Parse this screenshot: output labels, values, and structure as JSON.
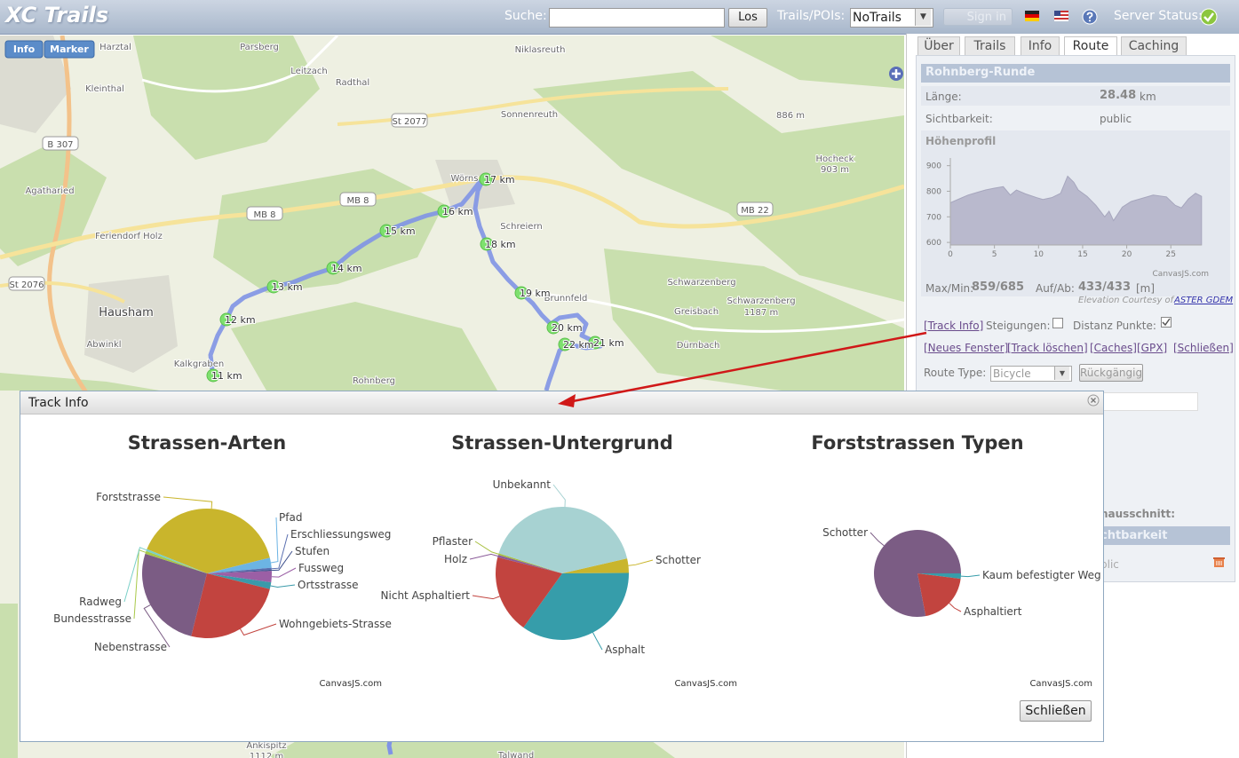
{
  "header": {
    "logo": "XC Trails",
    "search_label": "Suche:",
    "search_button": "Los",
    "trails_label": "Trails/POIs:",
    "trails_select": "NoTrails",
    "sign_in": "Sign in",
    "server_status": "Server Status:"
  },
  "map": {
    "buttons": [
      "Info",
      "Marker"
    ],
    "labels": [
      "Harztal",
      "Parsberg",
      "Niklasreuth",
      "Leitzach",
      "Radthal",
      "Kleinthal",
      "Sonnenreuth",
      "St 2077",
      "886 m",
      "B 307",
      "Hocheck",
      "903 m",
      "Agatharied",
      "MB 8",
      "MB 8",
      "MB 22",
      "Feriendorf Holz",
      "Schreiern",
      "Wörns",
      "St 2076",
      "Schwarzenberg",
      "Hausham",
      "Brunnfeld",
      "Greisbach",
      "Schwarzenberg",
      "1187 m",
      "Abwinkl",
      "Dürnbach",
      "Kalkgraben",
      "Rohnberg",
      "Ankispitz",
      "1112 m",
      "Talwand"
    ],
    "km_markers": [
      "11 km",
      "12 km",
      "13 km",
      "14 km",
      "15 km",
      "16 km",
      "17 km",
      "18 km",
      "19 km",
      "20 km",
      "21 km",
      "22 km"
    ]
  },
  "sidebar": {
    "tabs": [
      "Über",
      "Trails",
      "Info",
      "Route",
      "Caching"
    ],
    "route_name": "Rohnberg-Runde",
    "length_label": "Länge:",
    "length_value": "28.48",
    "length_unit": "km",
    "visibility_label": "Sichtbarkeit:",
    "visibility_value": "public",
    "profile_label": "Höhenprofil",
    "maxmin_label": "Max/Min:",
    "maxmin_value": "859/685",
    "updown_label": "Auf/Ab:",
    "updown_value": "433/433",
    "updown_unit": "[m]",
    "courtesy": "Elevation Courtesy of",
    "courtesy_link": "ASTER GDEM",
    "track_info": "[Track Info]",
    "slopes_label": "Steigungen:",
    "distance_label": "Distanz Punkte:",
    "links": [
      "[Neues Fenster]",
      "[Track löschen]",
      "[Caches]",
      "[GPX]",
      "[Schließen]"
    ],
    "route_type_label": "Route Type:",
    "route_type_value": "Bicycle",
    "undo": "Rückgängig",
    "hidden_fragments": [
      "hausschnitt:",
      "chtbarkeit",
      "blic"
    ]
  },
  "dialog": {
    "title": "Track Info",
    "close_button": "Schließen"
  },
  "chart_data": [
    {
      "type": "pie",
      "title": "Strassen-Arten",
      "credit": "CanvasJS.com",
      "categories": [
        "Forststrasse",
        "Pfad",
        "Erschliessungsweg",
        "Stufen",
        "Fussweg",
        "Ortsstrasse",
        "Wohngebiets-Strasse",
        "Nebenstrasse",
        "Bundesstrasse",
        "Radweg"
      ],
      "values": [
        40,
        2.5,
        0.5,
        0.3,
        2.8,
        1.7,
        25,
        26,
        0.7,
        0.5
      ],
      "colors": [
        "#c9b52c",
        "#6cb4e4",
        "#5a6fb0",
        "#3c4f8c",
        "#9b5fa5",
        "#3a9aaa",
        "#c2443f",
        "#7b5c84",
        "#a8c848",
        "#7ad0c8"
      ]
    },
    {
      "type": "pie",
      "title": "Strassen-Untergrund",
      "credit": "CanvasJS.com",
      "categories": [
        "Schotter",
        "Asphalt",
        "Nicht Asphaltiert",
        "Holz",
        "Pflaster",
        "Unbekannt"
      ],
      "values": [
        3.5,
        35,
        19,
        0.6,
        0.4,
        41.5
      ],
      "colors": [
        "#c9b52c",
        "#369daa",
        "#c2443f",
        "#8a5a98",
        "#a8c040",
        "#a7d2d2"
      ]
    },
    {
      "type": "pie",
      "title": "Forststrassen Typen",
      "credit": "CanvasJS.com",
      "categories": [
        "Kaum befestigter Weg",
        "Asphaltiert",
        "Schotter"
      ],
      "values": [
        2,
        20,
        78
      ],
      "colors": [
        "#369daa",
        "#c2443f",
        "#7b5c84"
      ]
    },
    {
      "type": "area",
      "credit": "CanvasJS.com",
      "color": "#b9b9cd",
      "x": [
        0,
        1,
        2,
        3,
        4,
        5,
        6,
        6.8,
        7.5,
        8.5,
        9.8,
        10.5,
        11.5,
        12.5,
        13.3,
        14,
        14.5,
        15.5,
        16.5,
        17.5,
        18,
        18.5,
        19.5,
        20.5,
        21.5,
        23,
        24.5,
        25.5,
        26.2,
        27,
        27.8,
        28.48
      ],
      "values": [
        755,
        770,
        785,
        795,
        805,
        812,
        818,
        785,
        805,
        790,
        775,
        768,
        775,
        792,
        859,
        835,
        805,
        780,
        745,
        700,
        722,
        685,
        738,
        760,
        770,
        785,
        778,
        745,
        735,
        770,
        792,
        780
      ],
      "xlim": [
        0,
        28.5
      ],
      "ylim": [
        590,
        930
      ],
      "xticks": [
        0,
        5,
        10,
        15,
        20,
        25
      ],
      "yticks": [
        600,
        700,
        800,
        900
      ]
    }
  ]
}
